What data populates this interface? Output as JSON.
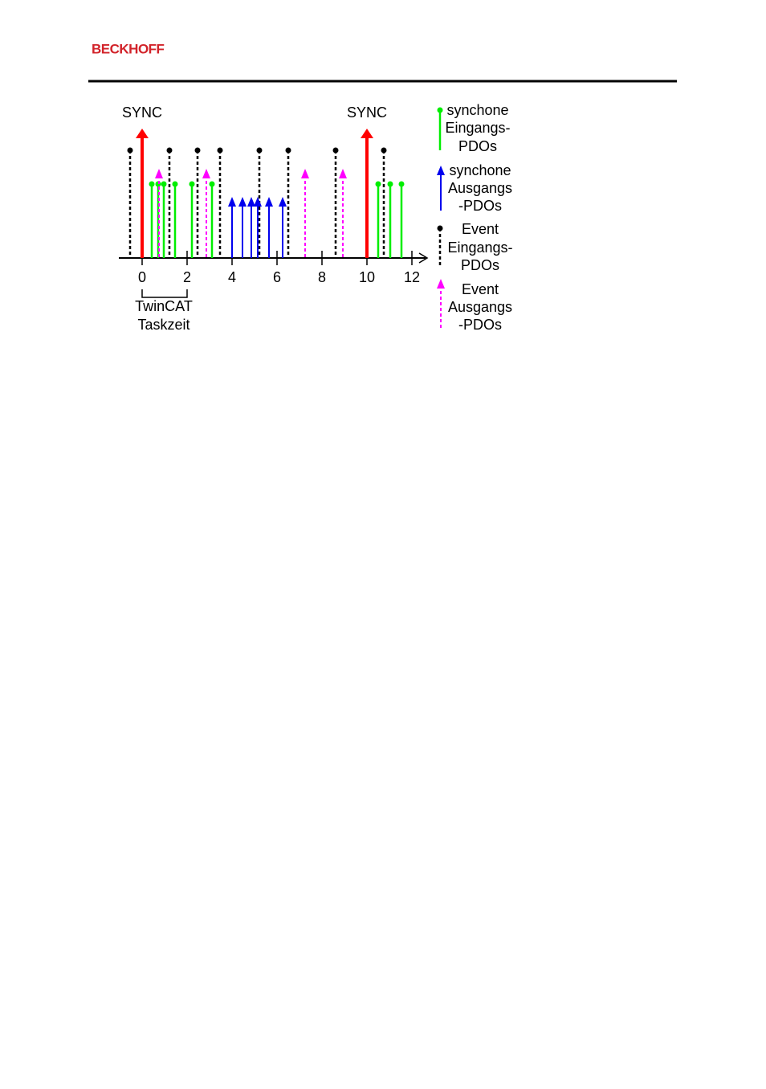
{
  "header": {
    "brand": "BECKHOFF"
  },
  "diagram": {
    "sync_labels": [
      "SYNC",
      "SYNC"
    ],
    "axis_labels": [
      "0",
      "2",
      "4",
      "6",
      "8",
      "10",
      "12"
    ],
    "bracket_label": [
      "TwinCAT",
      "Taskzeit"
    ],
    "legend": [
      {
        "lines": [
          "synchone",
          "Eingangs-",
          "PDOs"
        ]
      },
      {
        "lines": [
          "synchone",
          "Ausgangs",
          "-PDOs"
        ]
      },
      {
        "lines": [
          "Event",
          "Eingangs-",
          "PDOs"
        ]
      },
      {
        "lines": [
          "Event",
          "Ausgangs",
          "-PDOs"
        ]
      }
    ]
  }
}
